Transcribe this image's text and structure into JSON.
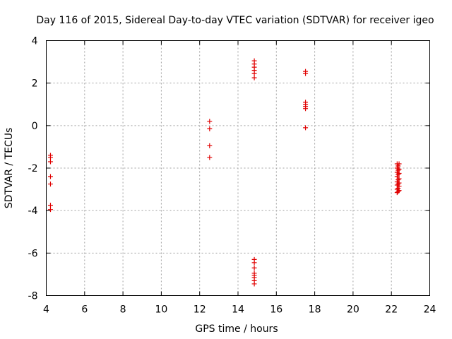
{
  "chart_data": {
    "type": "scatter",
    "title": "Day 116 of 2015, Sidereal Day-to-day VTEC variation (SDTVAR) for receiver igeo",
    "xlabel": "GPS time / hours",
    "ylabel": "SDTVAR / TECUs",
    "xlim": [
      4,
      24
    ],
    "ylim": [
      -8,
      4
    ],
    "xticks": [
      4,
      6,
      8,
      10,
      12,
      14,
      16,
      18,
      20,
      22,
      24
    ],
    "yticks": [
      -8,
      -6,
      -4,
      -2,
      0,
      2,
      4
    ],
    "xtick_labels": [
      "4",
      "6",
      "8",
      "10",
      "12",
      "14",
      "16",
      "18",
      "20",
      "22",
      "24"
    ],
    "ytick_labels": [
      "-8",
      "-6",
      "-4",
      "-2",
      "0",
      "2",
      "4"
    ],
    "grid": true,
    "marker": "+",
    "color": "#e00000",
    "series": [
      {
        "name": "SDTVAR",
        "points": [
          [
            4.22,
            -1.4
          ],
          [
            4.22,
            -1.5
          ],
          [
            4.22,
            -1.7
          ],
          [
            4.22,
            -2.4
          ],
          [
            4.22,
            -2.75
          ],
          [
            4.22,
            -3.75
          ],
          [
            4.22,
            -3.95
          ],
          [
            12.52,
            0.2
          ],
          [
            12.52,
            -0.15
          ],
          [
            12.52,
            -0.95
          ],
          [
            12.52,
            -1.5
          ],
          [
            14.85,
            3.05
          ],
          [
            14.85,
            2.9
          ],
          [
            14.85,
            2.75
          ],
          [
            14.85,
            2.6
          ],
          [
            14.85,
            2.45
          ],
          [
            14.85,
            2.25
          ],
          [
            14.85,
            -6.3
          ],
          [
            14.85,
            -6.45
          ],
          [
            14.85,
            -6.7
          ],
          [
            14.85,
            -6.95
          ],
          [
            14.85,
            -7.05
          ],
          [
            14.85,
            -7.15
          ],
          [
            14.85,
            -7.3
          ],
          [
            14.85,
            -7.45
          ],
          [
            17.52,
            2.55
          ],
          [
            17.52,
            2.45
          ],
          [
            17.52,
            1.1
          ],
          [
            17.52,
            1.0
          ],
          [
            17.52,
            0.9
          ],
          [
            17.52,
            0.8
          ],
          [
            17.52,
            -0.1
          ],
          [
            22.3,
            -1.8
          ],
          [
            22.4,
            -1.8
          ],
          [
            22.35,
            -1.9
          ],
          [
            22.3,
            -2.0
          ],
          [
            22.4,
            -2.05
          ],
          [
            22.35,
            -2.1
          ],
          [
            22.3,
            -2.2
          ],
          [
            22.4,
            -2.25
          ],
          [
            22.35,
            -2.3
          ],
          [
            22.3,
            -2.4
          ],
          [
            22.4,
            -2.5
          ],
          [
            22.35,
            -2.55
          ],
          [
            22.3,
            -2.65
          ],
          [
            22.4,
            -2.7
          ],
          [
            22.35,
            -2.75
          ],
          [
            22.3,
            -2.8
          ],
          [
            22.4,
            -2.85
          ],
          [
            22.35,
            -2.95
          ],
          [
            22.3,
            -3.0
          ],
          [
            22.4,
            -3.05
          ],
          [
            22.35,
            -3.1
          ],
          [
            22.3,
            -3.15
          ]
        ]
      }
    ]
  }
}
